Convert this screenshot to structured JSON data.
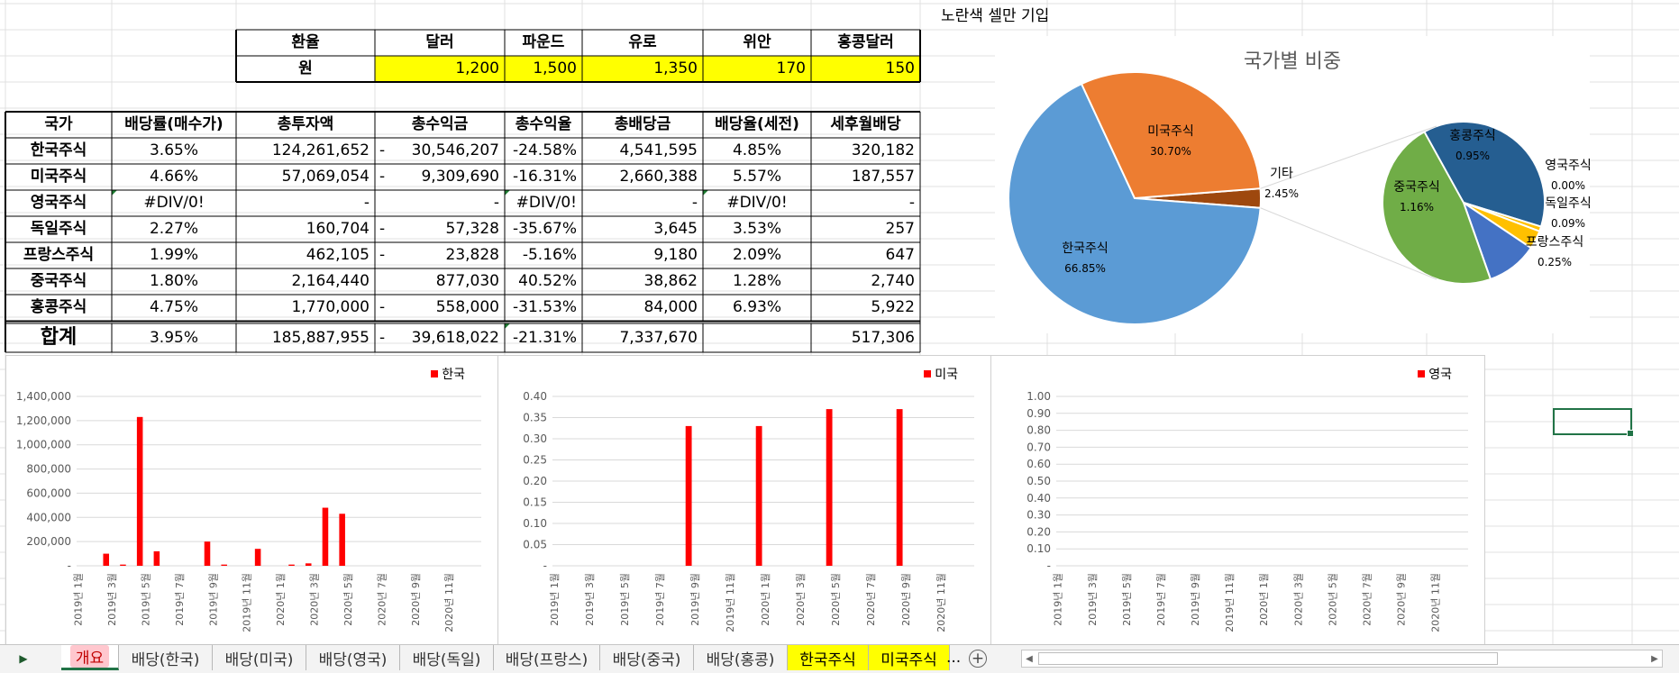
{
  "note_text": "노란색 셀만 기입",
  "fx_table": {
    "headers": [
      "환율",
      "달러",
      "파운드",
      "유로",
      "위안",
      "홍콩달러"
    ],
    "row_label": "원",
    "values": [
      "1,200",
      "1,500",
      "1,350",
      "170",
      "150"
    ]
  },
  "main_table": {
    "headers": [
      "국가",
      "배당률(매수가)",
      "총투자액",
      "총수익금",
      "총수익율",
      "총배당금",
      "배당율(세전)",
      "세후월배당"
    ],
    "rows": [
      {
        "country": "한국주식",
        "yield": "3.65%",
        "invest": "124,261,652",
        "profit_neg": "-",
        "profit": "30,546,207",
        "rate": "-24.58%",
        "div": "4,541,595",
        "div_rate": "4.85%",
        "monthly": "320,182"
      },
      {
        "country": "미국주식",
        "yield": "4.66%",
        "invest": "57,069,054",
        "profit_neg": "-",
        "profit": "9,309,690",
        "rate": "-16.31%",
        "div": "2,660,388",
        "div_rate": "5.57%",
        "monthly": "187,557"
      },
      {
        "country": "영국주식",
        "yield": "#DIV/0!",
        "invest": "-",
        "profit_neg": "",
        "profit": "-",
        "rate": "#DIV/0!",
        "div": "-",
        "div_rate": "#DIV/0!",
        "monthly": "-"
      },
      {
        "country": "독일주식",
        "yield": "2.27%",
        "invest": "160,704",
        "profit_neg": "-",
        "profit": "57,328",
        "rate": "-35.67%",
        "div": "3,645",
        "div_rate": "3.53%",
        "monthly": "257"
      },
      {
        "country": "프랑스주식",
        "yield": "1.99%",
        "invest": "462,105",
        "profit_neg": "-",
        "profit": "23,828",
        "rate": "-5.16%",
        "div": "9,180",
        "div_rate": "2.09%",
        "monthly": "647"
      },
      {
        "country": "중국주식",
        "yield": "1.80%",
        "invest": "2,164,440",
        "profit_neg": "",
        "profit": "877,030",
        "rate": "40.52%",
        "div": "38,862",
        "div_rate": "1.28%",
        "monthly": "2,740"
      },
      {
        "country": "홍콩주식",
        "yield": "4.75%",
        "invest": "1,770,000",
        "profit_neg": "-",
        "profit": "558,000",
        "rate": "-31.53%",
        "div": "84,000",
        "div_rate": "6.93%",
        "monthly": "5,922"
      }
    ],
    "total": {
      "label": "합계",
      "yield": "3.95%",
      "invest": "185,887,955",
      "profit_neg": "-",
      "profit": "39,618,022",
      "rate": "-21.31%",
      "div": "7,337,670",
      "div_rate": "",
      "monthly": "517,306"
    }
  },
  "chart_data": [
    {
      "type": "pie",
      "subtype": "pie-of-pie",
      "title": "국가별 비중",
      "slices": [
        {
          "label": "한국주식",
          "value": 66.85,
          "color": "#5b9bd5"
        },
        {
          "label": "미국주식",
          "value": 30.7,
          "color": "#ed7d31"
        },
        {
          "label": "기타",
          "value": 2.45,
          "color": "#9e480e"
        }
      ],
      "secondary_slices": [
        {
          "label": "홍콩주식",
          "value": 0.95,
          "color": "#255e91"
        },
        {
          "label": "영국주식",
          "value": 0.0,
          "color": "#ffc000"
        },
        {
          "label": "독일주식",
          "value": 0.09,
          "color": "#ffc000"
        },
        {
          "label": "프랑스주식",
          "value": 0.25,
          "color": "#4472c4"
        },
        {
          "label": "중국주식",
          "value": 1.16,
          "color": "#70ad47"
        }
      ],
      "value_labels": {
        "한국주식": "66.85%",
        "미국주식": "30.70%",
        "기타": "2.45%",
        "홍콩주식": "0.95%",
        "영국주식": "0.00%",
        "독일주식": "0.09%",
        "프랑스주식": "0.25%",
        "중국주식": "1.16%"
      }
    },
    {
      "type": "bar",
      "series": [
        {
          "name": "한국",
          "color": "#ff0000",
          "values": [
            0,
            0,
            0,
            100000,
            0,
            10000,
            0,
            1230000,
            0,
            120000,
            0,
            0,
            0,
            0,
            0,
            200000,
            0,
            10000,
            0,
            0,
            0,
            140000,
            0,
            0,
            0,
            10000,
            0,
            20000,
            0,
            480000,
            0,
            430000,
            0,
            0,
            0,
            0,
            0,
            0,
            0,
            0,
            0,
            0,
            0,
            0,
            0,
            0,
            0,
            0
          ]
        }
      ],
      "ylim": [
        0,
        1400000
      ],
      "yticks": [
        "-",
        "200,000",
        "400,000",
        "600,000",
        "800,000",
        "1,000,000",
        "1,200,000",
        "1,400,000"
      ],
      "xtick_labels": [
        "2019년 1월",
        "2019년 3월",
        "2019년 5월",
        "2019년 7월",
        "2019년 9월",
        "2019년 11월",
        "2020년 1월",
        "2020년 3월",
        "2020년 5월",
        "2020년 7월",
        "2020년 9월",
        "2020년 11월"
      ],
      "legend_position": "top-right"
    },
    {
      "type": "bar",
      "series": [
        {
          "name": "미국",
          "color": "#ff0000",
          "values": [
            0,
            0,
            0,
            0,
            0,
            0,
            0,
            0,
            0,
            0,
            0,
            0,
            0,
            0,
            0,
            0.33,
            0,
            0,
            0,
            0,
            0,
            0,
            0,
            0.33,
            0,
            0,
            0,
            0,
            0,
            0,
            0,
            0.37,
            0,
            0,
            0,
            0,
            0,
            0,
            0,
            0.37,
            0,
            0,
            0,
            0,
            0,
            0,
            0,
            0
          ]
        }
      ],
      "ylim": [
        0,
        0.4
      ],
      "yticks": [
        "-",
        "0.05",
        "0.10",
        "0.15",
        "0.20",
        "0.25",
        "0.30",
        "0.35",
        "0.40"
      ],
      "xtick_labels": [
        "2019년 1월",
        "2019년 3월",
        "2019년 5월",
        "2019년 7월",
        "2019년 9월",
        "2019년 11월",
        "2020년 1월",
        "2020년 3월",
        "2020년 5월",
        "2020년 7월",
        "2020년 9월",
        "2020년 11월"
      ],
      "legend_position": "top-right"
    },
    {
      "type": "bar",
      "series": [
        {
          "name": "영국",
          "color": "#ff0000",
          "values": []
        }
      ],
      "ylim": [
        0,
        1
      ],
      "yticks": [
        "-",
        "0.10",
        "0.20",
        "0.30",
        "0.40",
        "0.50",
        "0.60",
        "0.70",
        "0.80",
        "0.90",
        "1.00"
      ],
      "xtick_labels": [
        "2019년 1월",
        "2019년 3월",
        "2019년 5월",
        "2019년 7월",
        "2019년 9월",
        "2019년 11월",
        "2020년 1월",
        "2020년 3월",
        "2020년 5월",
        "2020년 7월",
        "2020년 9월",
        "2020년 11월"
      ],
      "legend_position": "top-right"
    }
  ],
  "sheet_tabs": [
    {
      "label": "개요",
      "state": "active"
    },
    {
      "label": "배당(한국)",
      "state": "normal"
    },
    {
      "label": "배당(미국)",
      "state": "normal"
    },
    {
      "label": "배당(영국)",
      "state": "normal"
    },
    {
      "label": "배당(독일)",
      "state": "normal"
    },
    {
      "label": "배당(프랑스)",
      "state": "normal"
    },
    {
      "label": "배당(중국)",
      "state": "normal"
    },
    {
      "label": "배당(홍콩)",
      "state": "normal"
    },
    {
      "label": "한국주식",
      "state": "yellow"
    },
    {
      "label": "미국주식",
      "state": "yellow"
    }
  ],
  "tab_overflow": "...",
  "add_sheet_symbol": "+",
  "colors": {
    "highlight": "#ffff00",
    "bar": "#ff0000",
    "active_tab": "#217346"
  }
}
